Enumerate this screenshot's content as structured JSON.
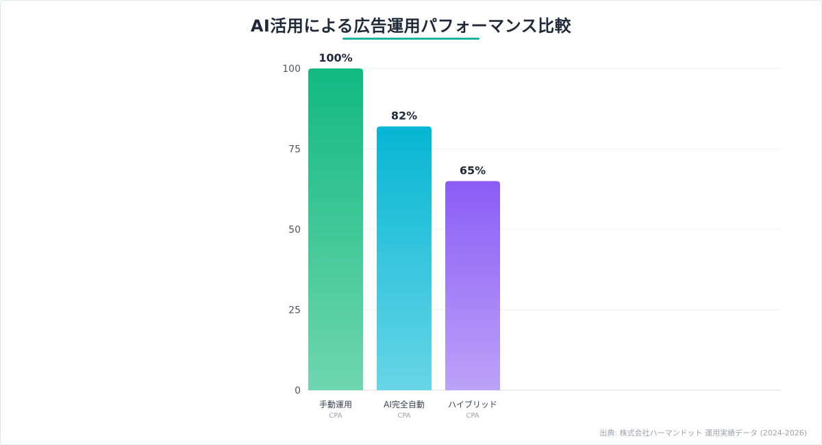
{
  "chart_data": {
    "type": "bar",
    "title": "AI活用による広告運用パフォーマンス比較",
    "xlabel": "",
    "ylabel": "",
    "ylim": [
      0,
      100
    ],
    "yticks": [
      0,
      25,
      50,
      75,
      100
    ],
    "grid": true,
    "categories": [
      {
        "label": "手動運用",
        "sublabel": "CPA"
      },
      {
        "label": "AI完全自動",
        "sublabel": "CPA"
      },
      {
        "label": "ハイブリッド",
        "sublabel": "CPA"
      }
    ],
    "values": [
      100,
      82,
      65
    ],
    "value_labels": [
      "100%",
      "82%",
      "65%"
    ],
    "colors": [
      {
        "top": "#12b981",
        "bottom": "#6fd6b1"
      },
      {
        "top": "#06b6d4",
        "bottom": "#67d5e6"
      },
      {
        "top": "#8b5cf6",
        "bottom": "#bca2f8"
      }
    ]
  },
  "source_note": "出典: 株式会社ハーマンドット 運用実績データ (2024-2026)"
}
